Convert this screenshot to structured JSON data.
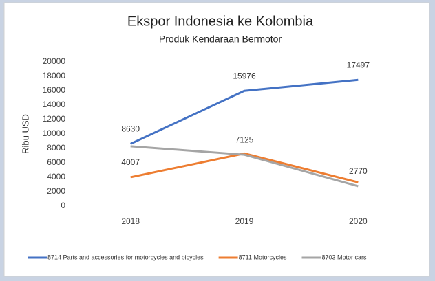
{
  "chart_data": {
    "type": "line",
    "title": "Ekspor Indonesia ke Kolombia",
    "subtitle": "Produk Kendaraan Bermotor",
    "y_label": "Ribu USD",
    "categories": [
      "2018",
      "2019",
      "2020"
    ],
    "series": [
      {
        "name": "8714 Parts and accessories for motorcycles and bicycles",
        "color": "#4472c4",
        "values": [
          8630,
          15976,
          17497
        ],
        "value_labels": [
          "8630",
          "15976",
          "17497"
        ]
      },
      {
        "name": "8711 Motorcycles",
        "color": "#ed7d31",
        "values": [
          4007,
          7300,
          3300
        ],
        "value_labels": [
          "4007",
          null,
          null
        ]
      },
      {
        "name": "8703 Motor cars",
        "color": "#a5a5a5",
        "values": [
          8300,
          7125,
          2770
        ],
        "value_labels": [
          null,
          "7125",
          "2770"
        ]
      }
    ],
    "ylim": [
      0,
      20000
    ],
    "yticks": [
      0,
      2000,
      4000,
      6000,
      8000,
      10000,
      12000,
      14000,
      16000,
      18000,
      20000
    ],
    "grid": false,
    "legend": "bottom"
  }
}
